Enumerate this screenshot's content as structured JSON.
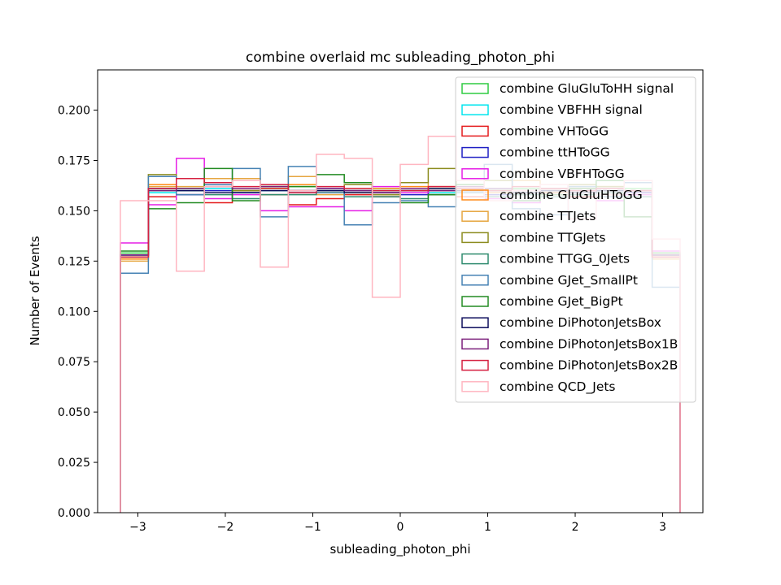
{
  "chart_data": {
    "type": "step-histogram",
    "title": "combine overlaid mc subleading_photon_phi",
    "xlabel": "subleading_photon_phi",
    "ylabel": "Number of Events",
    "xlim": [
      -3.46,
      3.46
    ],
    "ylim": [
      0.0,
      0.22
    ],
    "xticks": [
      -3,
      -2,
      -1,
      0,
      1,
      2,
      3
    ],
    "xtick_labels": [
      "−3",
      "−2",
      "−1",
      "0",
      "1",
      "2",
      "3"
    ],
    "yticks": [
      0.0,
      0.025,
      0.05,
      0.075,
      0.1,
      0.125,
      0.15,
      0.175,
      0.2
    ],
    "ytick_labels": [
      "0.000",
      "0.025",
      "0.050",
      "0.075",
      "0.100",
      "0.125",
      "0.150",
      "0.175",
      "0.200"
    ],
    "legend_position": "top-right",
    "grid": false,
    "bin_edges": [
      -3.2,
      -2.88,
      -2.56,
      -2.24,
      -1.92,
      -1.6,
      -1.28,
      -0.96,
      -0.64,
      -0.32,
      0.0,
      0.32,
      0.64,
      0.96,
      1.28,
      1.6,
      1.92,
      2.24,
      2.56,
      2.88,
      3.2
    ],
    "series": [
      {
        "name": "combine GluGluToHH signal",
        "color": "#2ecc40",
        "values": [
          0.129,
          0.16,
          0.161,
          0.163,
          0.16,
          0.161,
          0.162,
          0.159,
          0.16,
          0.161,
          0.16,
          0.161,
          0.16,
          0.16,
          0.161,
          0.16,
          0.161,
          0.16,
          0.161,
          0.129
        ]
      },
      {
        "name": "combine VBFHH signal",
        "color": "#00e5ee",
        "values": [
          0.128,
          0.159,
          0.16,
          0.161,
          0.159,
          0.16,
          0.16,
          0.16,
          0.159,
          0.16,
          0.16,
          0.159,
          0.16,
          0.161,
          0.16,
          0.159,
          0.16,
          0.161,
          0.16,
          0.128
        ]
      },
      {
        "name": "combine VHToGG",
        "color": "#e41a1c",
        "values": [
          0.127,
          0.157,
          0.158,
          0.154,
          0.16,
          0.161,
          0.153,
          0.156,
          0.158,
          0.157,
          0.16,
          0.158,
          0.157,
          0.159,
          0.158,
          0.16,
          0.157,
          0.158,
          0.159,
          0.127
        ]
      },
      {
        "name": "combine ttHToGG",
        "color": "#1f1fc4",
        "values": [
          0.128,
          0.161,
          0.158,
          0.16,
          0.159,
          0.158,
          0.16,
          0.161,
          0.16,
          0.159,
          0.158,
          0.16,
          0.161,
          0.158,
          0.16,
          0.159,
          0.161,
          0.16,
          0.159,
          0.128
        ]
      },
      {
        "name": "combine VBFHToGG",
        "color": "#e61ee6",
        "values": [
          0.134,
          0.153,
          0.176,
          0.156,
          0.158,
          0.15,
          0.152,
          0.152,
          0.15,
          0.162,
          0.159,
          0.16,
          0.161,
          0.156,
          0.154,
          0.158,
          0.16,
          0.155,
          0.158,
          0.13
        ]
      },
      {
        "name": "combine GluGluHToGG",
        "color": "#ff8c1a",
        "values": [
          0.126,
          0.163,
          0.166,
          0.163,
          0.16,
          0.158,
          0.163,
          0.16,
          0.159,
          0.161,
          0.162,
          0.16,
          0.161,
          0.16,
          0.16,
          0.159,
          0.161,
          0.162,
          0.16,
          0.127
        ]
      },
      {
        "name": "combine TTJets",
        "color": "#e6a640",
        "values": [
          0.125,
          0.162,
          0.162,
          0.166,
          0.166,
          0.163,
          0.167,
          0.158,
          0.161,
          0.158,
          0.164,
          0.162,
          0.16,
          0.159,
          0.165,
          0.163,
          0.162,
          0.161,
          0.16,
          0.126
        ]
      },
      {
        "name": "combine TTGJets",
        "color": "#8c8c1f",
        "values": [
          0.127,
          0.168,
          0.161,
          0.163,
          0.16,
          0.162,
          0.16,
          0.159,
          0.163,
          0.158,
          0.164,
          0.171,
          0.16,
          0.165,
          0.16,
          0.161,
          0.163,
          0.162,
          0.16,
          0.128
        ]
      },
      {
        "name": "combine TTGG_0Jets",
        "color": "#2e8b6e",
        "values": [
          0.128,
          0.16,
          0.16,
          0.158,
          0.156,
          0.158,
          0.158,
          0.16,
          0.157,
          0.157,
          0.156,
          0.158,
          0.159,
          0.157,
          0.158,
          0.157,
          0.158,
          0.159,
          0.157,
          0.128
        ]
      },
      {
        "name": "combine GJet_SmallPt",
        "color": "#4682b4",
        "values": [
          0.119,
          0.167,
          0.158,
          0.163,
          0.171,
          0.147,
          0.172,
          0.159,
          0.143,
          0.154,
          0.155,
          0.152,
          0.159,
          0.173,
          0.151,
          0.148,
          0.162,
          0.157,
          0.164,
          0.112
        ]
      },
      {
        "name": "combine GJet_BigPt",
        "color": "#228b22",
        "values": [
          0.13,
          0.151,
          0.154,
          0.171,
          0.155,
          0.162,
          0.162,
          0.168,
          0.164,
          0.16,
          0.154,
          0.158,
          0.163,
          0.16,
          0.155,
          0.158,
          0.161,
          0.165,
          0.147,
          0.129
        ]
      },
      {
        "name": "combine DiPhotonJetsBox",
        "color": "#0d0d5c",
        "values": [
          0.128,
          0.161,
          0.16,
          0.159,
          0.159,
          0.16,
          0.159,
          0.16,
          0.159,
          0.159,
          0.16,
          0.161,
          0.16,
          0.16,
          0.159,
          0.16,
          0.159,
          0.16,
          0.16,
          0.128
        ]
      },
      {
        "name": "combine DiPhotonJetsBox1B",
        "color": "#7b1f7b",
        "values": [
          0.128,
          0.16,
          0.161,
          0.162,
          0.161,
          0.162,
          0.16,
          0.161,
          0.16,
          0.159,
          0.161,
          0.16,
          0.162,
          0.161,
          0.16,
          0.161,
          0.16,
          0.161,
          0.16,
          0.128
        ]
      },
      {
        "name": "combine DiPhotonJetsBox2B",
        "color": "#d62040",
        "values": [
          0.127,
          0.161,
          0.166,
          0.164,
          0.162,
          0.163,
          0.159,
          0.162,
          0.161,
          0.16,
          0.16,
          0.162,
          0.161,
          0.16,
          0.162,
          0.161,
          0.16,
          0.161,
          0.16,
          0.127
        ]
      },
      {
        "name": "combine QCD_Jets",
        "color": "#ffb6c1",
        "values": [
          0.155,
          0.155,
          0.12,
          0.162,
          0.165,
          0.122,
          0.16,
          0.178,
          0.176,
          0.107,
          0.173,
          0.187,
          0.165,
          0.155,
          0.16,
          0.163,
          0.146,
          0.158,
          0.165,
          0.136
        ]
      }
    ]
  }
}
